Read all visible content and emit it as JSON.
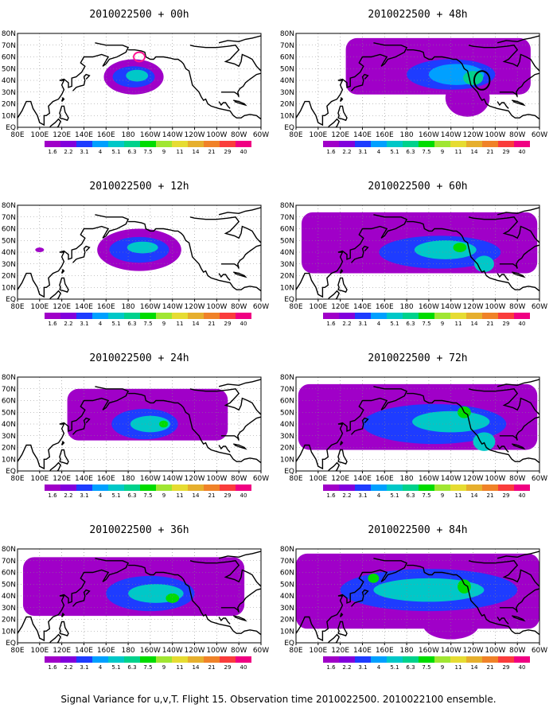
{
  "caption": "Signal Variance for u,v,T. Flight 15. Observation time 2010022500. 2010022100 ensemble.",
  "chart_data": {
    "type": "heatmap",
    "map_extent": {
      "lon": [
        80,
        300
      ],
      "lat": [
        0,
        80
      ]
    },
    "grid": true,
    "lon_tick_labels": [
      "80E",
      "100E",
      "120E",
      "140E",
      "160E",
      "180",
      "160W",
      "140W",
      "120W",
      "100W",
      "80W",
      "60W"
    ],
    "lat_tick_labels": [
      "EQ",
      "10N",
      "20N",
      "30N",
      "40N",
      "50N",
      "60N",
      "70N",
      "80N"
    ],
    "colorbar": {
      "levels": [
        "1.6",
        "2.2",
        "3.1",
        "4",
        "5.1",
        "6.3",
        "7.5",
        "9",
        "11",
        "14",
        "21",
        "29",
        "40"
      ],
      "colors": [
        "#a000c8",
        "#8200dc",
        "#1e3cff",
        "#00a0ff",
        "#00c8c8",
        "#00d28c",
        "#00dc00",
        "#a0e632",
        "#e6dc32",
        "#e6af2d",
        "#f08228",
        "#fa3c3c",
        "#f00082"
      ]
    },
    "panels": [
      {
        "title": "2010022500 + 00h",
        "features": [
          {
            "shape": "blob",
            "value_level": "1.6",
            "lon": 185,
            "lat": 43,
            "rlon": 27,
            "rlat": 15
          },
          {
            "shape": "blob",
            "value_level": "3.1",
            "lon": 185,
            "lat": 43,
            "rlon": 19,
            "rlat": 9
          },
          {
            "shape": "blob",
            "value_level": "5.1",
            "lon": 188,
            "lat": 44,
            "rlon": 10,
            "rlat": 5
          },
          {
            "shape": "ring",
            "color": "#ff1493",
            "lon": 190,
            "lat": 60,
            "rlon": 5,
            "rlat": 4
          }
        ]
      },
      {
        "title": "2010022500 + 48h",
        "features": [
          {
            "shape": "band",
            "value_level": "1.6",
            "lon": [
              125,
              292
            ],
            "lat_center": 52,
            "half_width": 24
          },
          {
            "shape": "blob",
            "value_level": "1.6",
            "lon": 235,
            "lat": 25,
            "rlon": 20,
            "rlat": 16
          },
          {
            "shape": "blob",
            "value_level": "3.1",
            "lon": 220,
            "lat": 45,
            "rlon": 40,
            "rlat": 13
          },
          {
            "shape": "blob",
            "value_level": "4",
            "lon": 225,
            "lat": 45,
            "rlon": 25,
            "rlat": 9
          },
          {
            "shape": "blob",
            "value_level": "6.3",
            "lon": 240,
            "lat": 42,
            "rlon": 9,
            "rlat": 6
          },
          {
            "shape": "ring",
            "color": "#000000",
            "lon": 248,
            "lat": 40,
            "rlon": 7,
            "rlat": 8
          }
        ]
      },
      {
        "title": "2010022500 + 12h",
        "features": [
          {
            "shape": "blob",
            "value_level": "1.6",
            "lon": 190,
            "lat": 42,
            "rlon": 38,
            "rlat": 18
          },
          {
            "shape": "blob",
            "value_level": "3.1",
            "lon": 190,
            "lat": 42,
            "rlon": 27,
            "rlat": 11
          },
          {
            "shape": "blob",
            "value_level": "5.1",
            "lon": 193,
            "lat": 44,
            "rlon": 14,
            "rlat": 5
          },
          {
            "shape": "blob",
            "value_level": "1.6",
            "lon": 100,
            "lat": 42,
            "rlon": 4,
            "rlat": 2
          }
        ]
      },
      {
        "title": "2010022500 + 60h",
        "features": [
          {
            "shape": "band",
            "value_level": "1.6",
            "lon": [
              85,
              298
            ],
            "lat_center": 48,
            "half_width": 26
          },
          {
            "shape": "blob",
            "value_level": "3.1",
            "lon": 210,
            "lat": 40,
            "rlon": 55,
            "rlat": 14
          },
          {
            "shape": "blob",
            "value_level": "5.1",
            "lon": 215,
            "lat": 42,
            "rlon": 28,
            "rlat": 8
          },
          {
            "shape": "blob",
            "value_level": "7.5",
            "lon": 228,
            "lat": 44,
            "rlon": 6,
            "rlat": 4
          },
          {
            "shape": "blob",
            "value_level": "5.1",
            "lon": 250,
            "lat": 30,
            "rlon": 9,
            "rlat": 7
          }
        ]
      },
      {
        "title": "2010022500 + 24h",
        "features": [
          {
            "shape": "band",
            "value_level": "1.6",
            "lon": [
              125,
              270
            ],
            "lat_center": 48,
            "half_width": 22
          },
          {
            "shape": "blob",
            "value_level": "3.1",
            "lon": 195,
            "lat": 40,
            "rlon": 30,
            "rlat": 13
          },
          {
            "shape": "blob",
            "value_level": "5.1",
            "lon": 200,
            "lat": 40,
            "rlon": 18,
            "rlat": 7
          },
          {
            "shape": "blob",
            "value_level": "7.5",
            "lon": 212,
            "lat": 40,
            "rlon": 4,
            "rlat": 3
          }
        ]
      },
      {
        "title": "2010022500 + 72h",
        "features": [
          {
            "shape": "band",
            "value_level": "1.6",
            "lon": [
              82,
              298
            ],
            "lat_center": 46,
            "half_width": 28
          },
          {
            "shape": "blob",
            "value_level": "3.1",
            "lon": 205,
            "lat": 40,
            "rlon": 65,
            "rlat": 17
          },
          {
            "shape": "blob",
            "value_level": "5.1",
            "lon": 220,
            "lat": 42,
            "rlon": 35,
            "rlat": 9
          },
          {
            "shape": "blob",
            "value_level": "7.5",
            "lon": 232,
            "lat": 50,
            "rlon": 6,
            "rlat": 5
          },
          {
            "shape": "blob",
            "value_level": "5.1",
            "lon": 250,
            "lat": 25,
            "rlon": 10,
            "rlat": 8
          }
        ]
      },
      {
        "title": "2010022500 + 36h",
        "features": [
          {
            "shape": "band",
            "value_level": "1.6",
            "lon": [
              85,
              285
            ],
            "lat_center": 48,
            "half_width": 25
          },
          {
            "shape": "blob",
            "value_level": "3.1",
            "lon": 200,
            "lat": 42,
            "rlon": 40,
            "rlat": 15
          },
          {
            "shape": "blob",
            "value_level": "5.1",
            "lon": 205,
            "lat": 42,
            "rlon": 25,
            "rlat": 8
          },
          {
            "shape": "blob",
            "value_level": "7.5",
            "lon": 220,
            "lat": 38,
            "rlon": 6,
            "rlat": 4
          }
        ]
      },
      {
        "title": "2010022500 + 84h",
        "features": [
          {
            "shape": "band",
            "value_level": "1.6",
            "lon": [
              80,
              300
            ],
            "lat_center": 44,
            "half_width": 32
          },
          {
            "shape": "blob",
            "value_level": "3.1",
            "lon": 200,
            "lat": 45,
            "rlon": 80,
            "rlat": 18
          },
          {
            "shape": "blob",
            "value_level": "5.1",
            "lon": 200,
            "lat": 45,
            "rlon": 50,
            "rlat": 10
          },
          {
            "shape": "blob",
            "value_level": "7.5",
            "lon": 232,
            "lat": 48,
            "rlon": 6,
            "rlat": 6
          },
          {
            "shape": "blob",
            "value_level": "7.5",
            "lon": 150,
            "lat": 55,
            "rlon": 5,
            "rlat": 4
          },
          {
            "shape": "blob",
            "value_level": "1.6",
            "lon": 220,
            "lat": 15,
            "rlon": 25,
            "rlat": 12
          }
        ]
      }
    ]
  }
}
